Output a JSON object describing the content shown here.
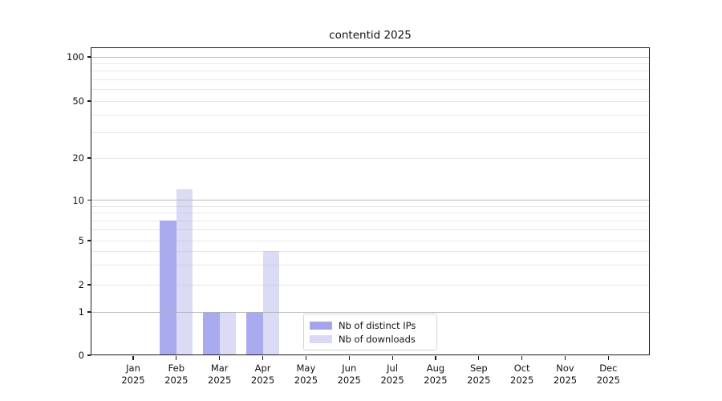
{
  "title": "contentid 2025",
  "chart_data": {
    "type": "bar",
    "title": "contentid 2025",
    "categories": [
      "Jan 2025",
      "Feb 2025",
      "Mar 2025",
      "Apr 2025",
      "May 2025",
      "Jun 2025",
      "Jul 2025",
      "Aug 2025",
      "Sep 2025",
      "Oct 2025",
      "Nov 2025",
      "Dec 2025"
    ],
    "series": [
      {
        "name": "Nb of distinct IPs",
        "color": "#a5a5ee",
        "values": [
          0,
          7,
          1,
          1,
          0,
          0,
          0,
          0,
          0,
          0,
          0,
          0
        ]
      },
      {
        "name": "Nb of downloads",
        "color": "#d9d9f6",
        "values": [
          0,
          12,
          1,
          4,
          0,
          0,
          0,
          0,
          0,
          0,
          0,
          0
        ]
      }
    ],
    "xlabel": "",
    "ylabel": "",
    "yscale": "symlog",
    "y_ticks": [
      0,
      1,
      2,
      5,
      10,
      20,
      50,
      100
    ],
    "ylim": [
      0,
      115
    ],
    "grid": true,
    "grid_major_color": "#c4c4c4",
    "grid_minor_color": "#ececec",
    "legend_position": "lower center",
    "background_color": "#ffffff",
    "axis_color": "#1a1a1a"
  }
}
